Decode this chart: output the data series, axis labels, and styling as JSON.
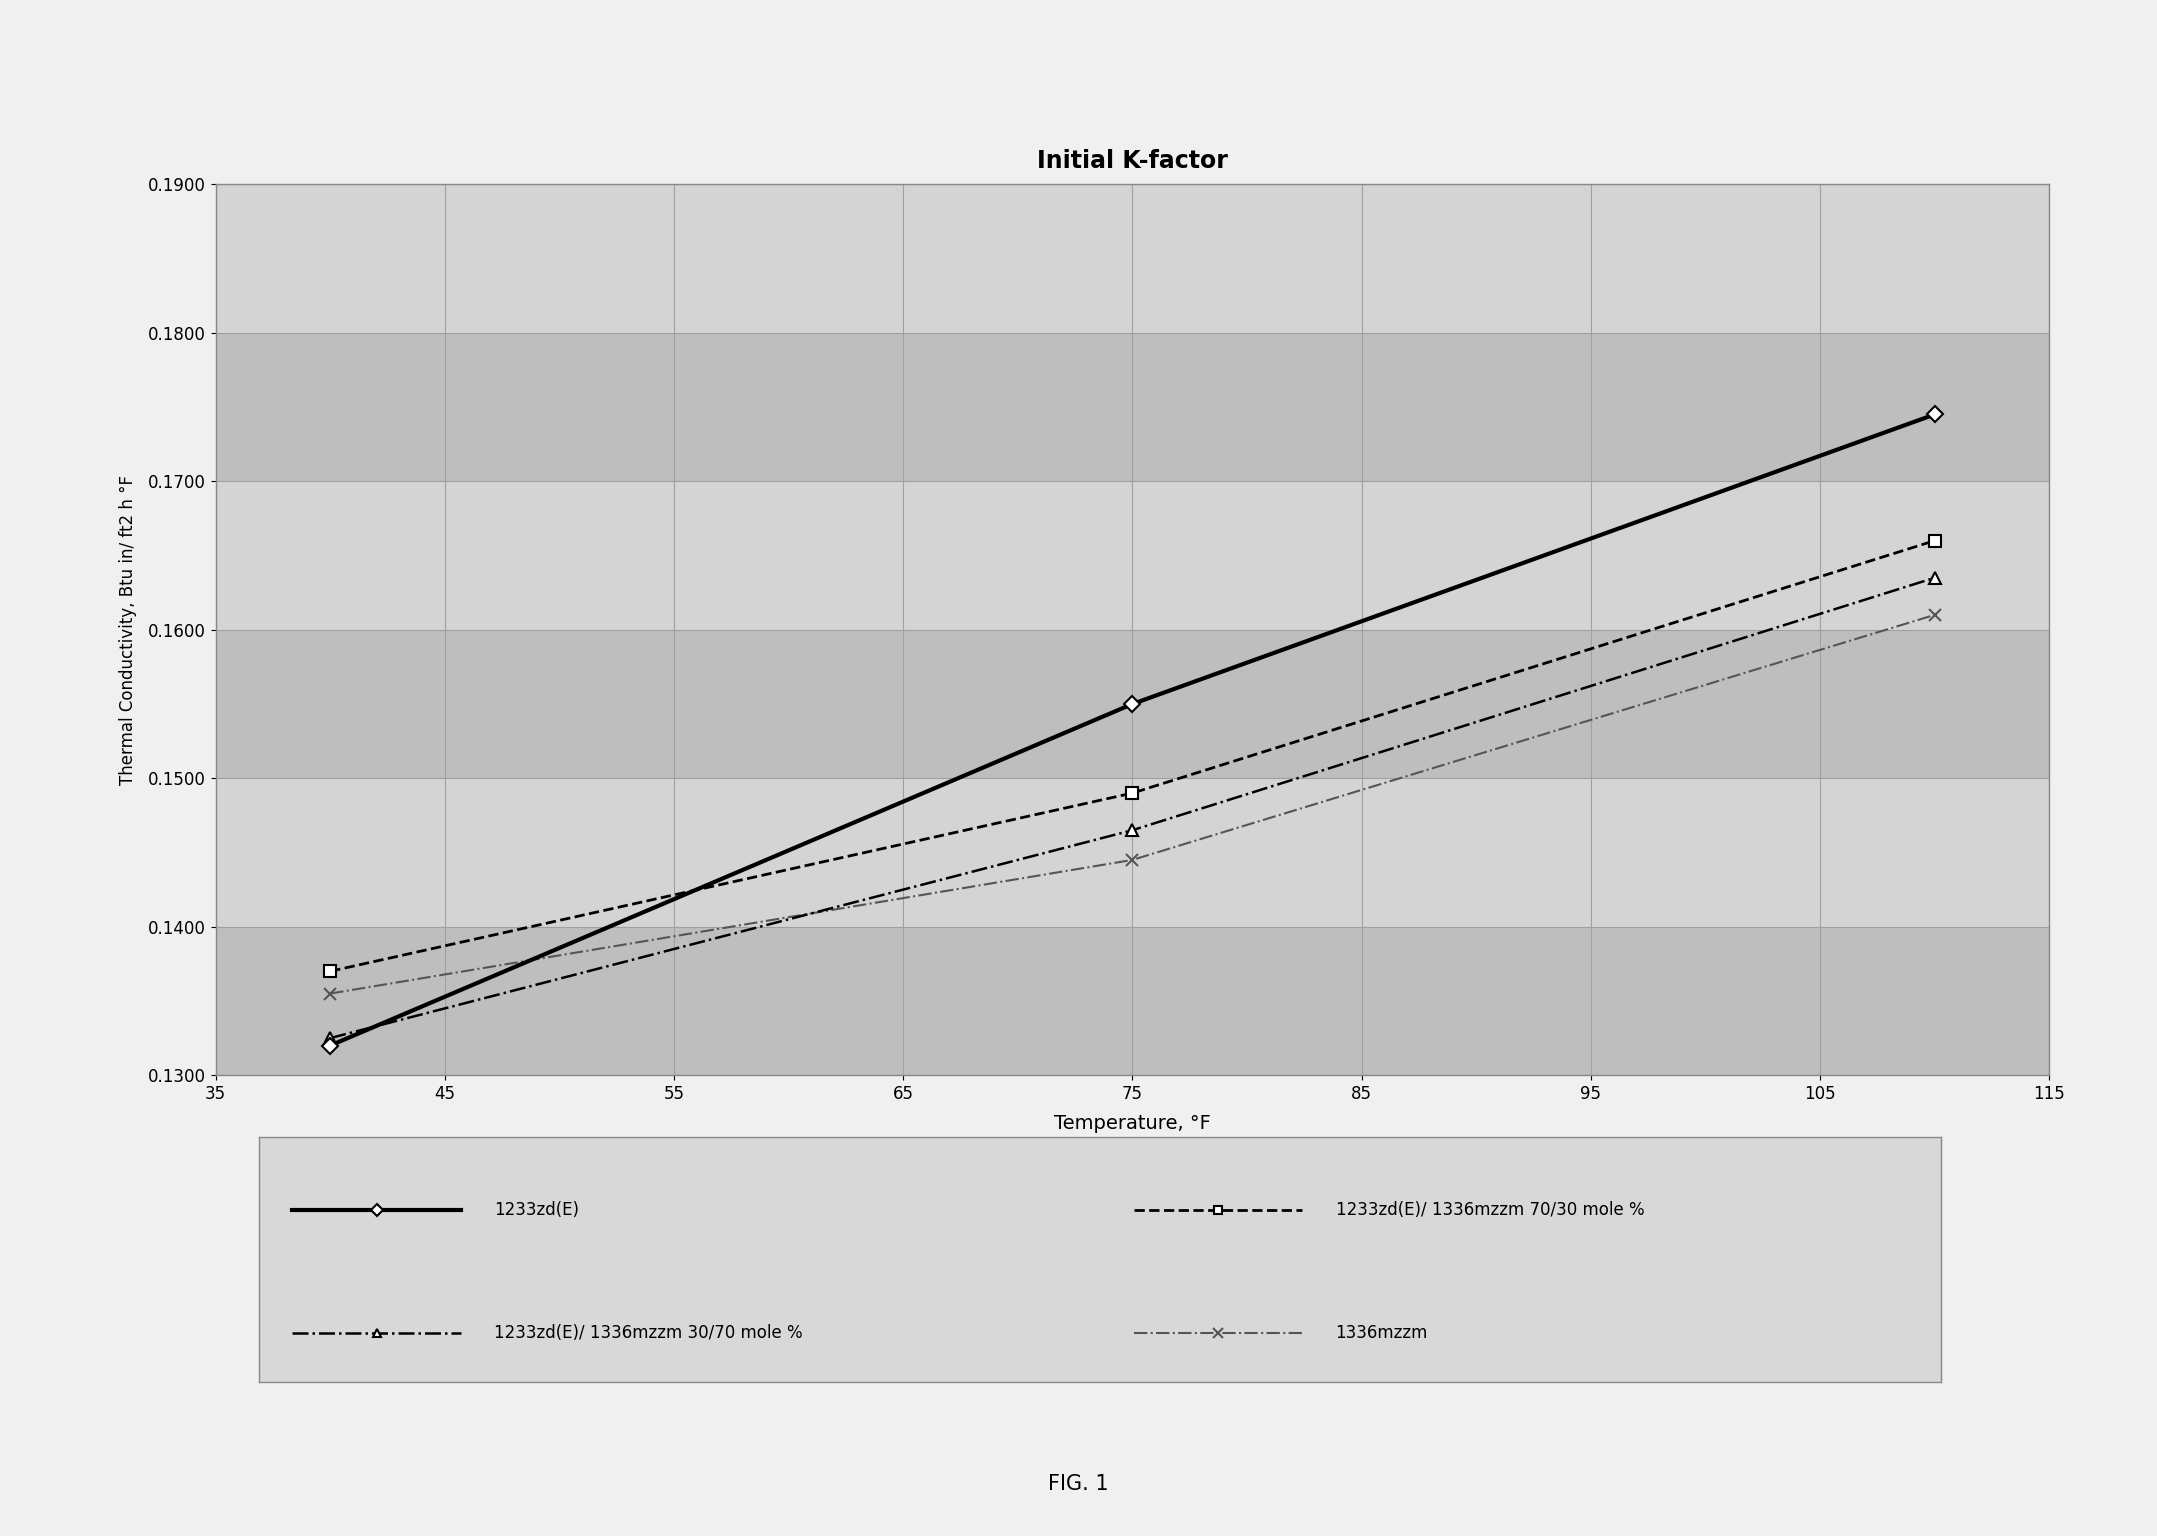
{
  "title": "Initial K-factor",
  "xlabel": "Temperature, °F",
  "ylabel": "Thermal Conductivity, Btu in/ ft2 h °F",
  "xlim": [
    35,
    115
  ],
  "ylim": [
    0.13,
    0.19
  ],
  "xticks": [
    35,
    45,
    55,
    65,
    75,
    85,
    95,
    105,
    115
  ],
  "yticks": [
    0.13,
    0.14,
    0.15,
    0.16,
    0.17,
    0.18,
    0.19
  ],
  "series": [
    {
      "label": "1233zd(E)",
      "x": [
        40,
        75,
        110
      ],
      "y": [
        0.132,
        0.155,
        0.1745
      ],
      "color": "#000000",
      "linewidth": 3.0,
      "linestyle": "-",
      "marker": "D",
      "markersize": 8,
      "markerfacecolor": "white",
      "markeredgecolor": "#000000",
      "markeredgewidth": 1.5,
      "zorder": 5
    },
    {
      "label": "1233zd(E)/ 1336mzzm 70/30 mole %",
      "x": [
        40,
        75,
        110
      ],
      "y": [
        0.137,
        0.149,
        0.166
      ],
      "color": "#000000",
      "linewidth": 2.0,
      "linestyle": "--",
      "marker": "s",
      "markersize": 8,
      "markerfacecolor": "white",
      "markeredgecolor": "#000000",
      "markeredgewidth": 1.5,
      "zorder": 4
    },
    {
      "label": "1233zd(E)/ 1336mzzm 30/70 mole %",
      "x": [
        40,
        75,
        110
      ],
      "y": [
        0.1325,
        0.1465,
        0.1635
      ],
      "color": "#000000",
      "linewidth": 1.8,
      "linestyle": "-.",
      "marker": "^",
      "markersize": 8,
      "markerfacecolor": "white",
      "markeredgecolor": "#000000",
      "markeredgewidth": 1.5,
      "zorder": 3
    },
    {
      "label": "1336mzzm",
      "x": [
        40,
        75,
        110
      ],
      "y": [
        0.1355,
        0.1445,
        0.161
      ],
      "color": "#555555",
      "linewidth": 1.5,
      "linestyle": "-.",
      "marker": "x",
      "markersize": 9,
      "markerfacecolor": "#555555",
      "markeredgecolor": "#555555",
      "markeredgewidth": 1.5,
      "zorder": 2
    }
  ],
  "fig_caption": "FIG. 1",
  "fig_width": 21.57,
  "fig_height": 15.36,
  "dpi": 100,
  "figure_bg": "#f0f0f0",
  "plot_bg_light": "#d4d4d4",
  "plot_bg_dark": "#bebebe",
  "grid_color": "#a0a0a0",
  "legend_bg": "#d8d8d8"
}
